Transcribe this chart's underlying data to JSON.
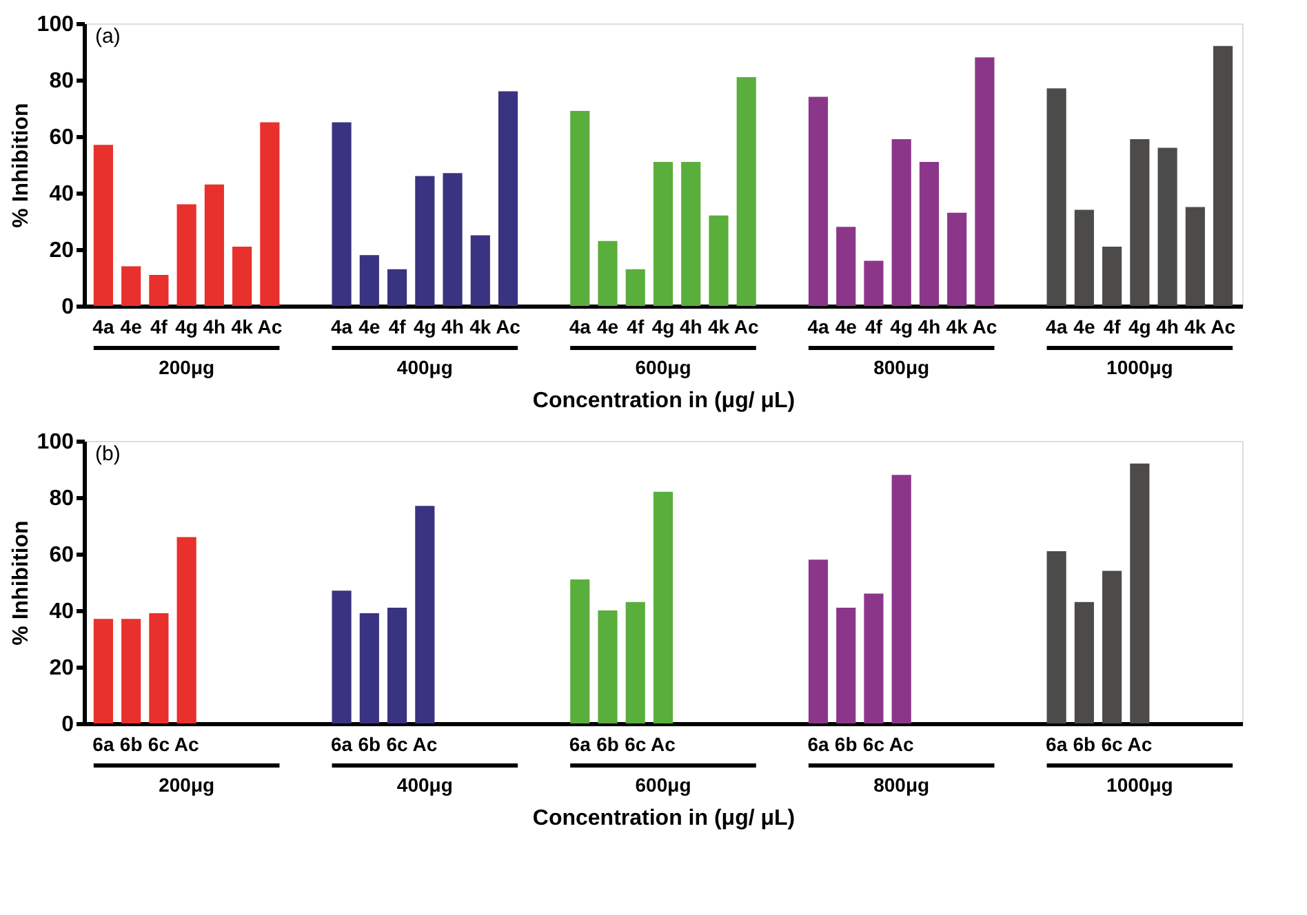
{
  "chart_data": [
    {
      "type": "bar",
      "annotations": [
        "(a)"
      ],
      "xlabel": "Concentration in (μg/ μL)",
      "ylabel": "% Inhibition",
      "categories": [
        "200μg",
        "400μg",
        "600μg",
        "800μg",
        "1000μg"
      ],
      "series": [
        {
          "name": "4a",
          "colors": [
            "#e8302c",
            "#3a3381",
            "#5aae3c",
            "#8c368a",
            "#4d4b49"
          ],
          "values": [
            57,
            65,
            69,
            74,
            77
          ]
        },
        {
          "name": "4e",
          "colors": [
            "#e8302c",
            "#3a3381",
            "#5aae3c",
            "#8c368a",
            "#4d4b49"
          ],
          "values": [
            14,
            18,
            23,
            28,
            34
          ]
        },
        {
          "name": "4f",
          "colors": [
            "#e8302c",
            "#3a3381",
            "#5aae3c",
            "#8c368a",
            "#4d4b49"
          ],
          "values": [
            11,
            13,
            13,
            16,
            21
          ]
        },
        {
          "name": "4g",
          "colors": [
            "#e8302c",
            "#3a3381",
            "#5aae3c",
            "#8c368a",
            "#4d4b49"
          ],
          "values": [
            36,
            46,
            51,
            59,
            59
          ]
        },
        {
          "name": "4h",
          "colors": [
            "#e8302c",
            "#3a3381",
            "#5aae3c",
            "#8c368a",
            "#4d4b49"
          ],
          "values": [
            43,
            47,
            51,
            51,
            56
          ]
        },
        {
          "name": "4k",
          "colors": [
            "#e8302c",
            "#3a3381",
            "#5aae3c",
            "#8c368a",
            "#4d4b49"
          ],
          "values": [
            21,
            25,
            32,
            33,
            35
          ]
        },
        {
          "name": "Ac",
          "colors": [
            "#e8302c",
            "#3a3381",
            "#5aae3c",
            "#8c368a",
            "#4d4b49"
          ],
          "values": [
            65,
            76,
            81,
            88,
            92
          ]
        }
      ],
      "ylim": [
        0,
        100
      ],
      "yticks": [
        0,
        20,
        40,
        60,
        80,
        100
      ],
      "grid": false
    },
    {
      "type": "bar",
      "annotations": [
        "(b)"
      ],
      "xlabel": "Concentration in (μg/ μL)",
      "ylabel": "% Inhibition",
      "categories": [
        "200μg",
        "400μg",
        "600μg",
        "800μg",
        "1000μg"
      ],
      "series": [
        {
          "name": "6a",
          "colors": [
            "#e8302c",
            "#3a3381",
            "#5aae3c",
            "#8c368a",
            "#4d4b49"
          ],
          "values": [
            37,
            47,
            51,
            58,
            61
          ]
        },
        {
          "name": "6b",
          "colors": [
            "#e8302c",
            "#3a3381",
            "#5aae3c",
            "#8c368a",
            "#4d4b49"
          ],
          "values": [
            37,
            39,
            40,
            41,
            43
          ]
        },
        {
          "name": "6c",
          "colors": [
            "#e8302c",
            "#3a3381",
            "#5aae3c",
            "#8c368a",
            "#4d4b49"
          ],
          "values": [
            39,
            41,
            43,
            46,
            54
          ]
        },
        {
          "name": "Ac",
          "colors": [
            "#e8302c",
            "#3a3381",
            "#5aae3c",
            "#8c368a",
            "#4d4b49"
          ],
          "values": [
            66,
            77,
            82,
            88,
            92
          ]
        }
      ],
      "ylim": [
        0,
        100
      ],
      "yticks": [
        0,
        20,
        40,
        60,
        80,
        100
      ],
      "grid": false
    }
  ]
}
